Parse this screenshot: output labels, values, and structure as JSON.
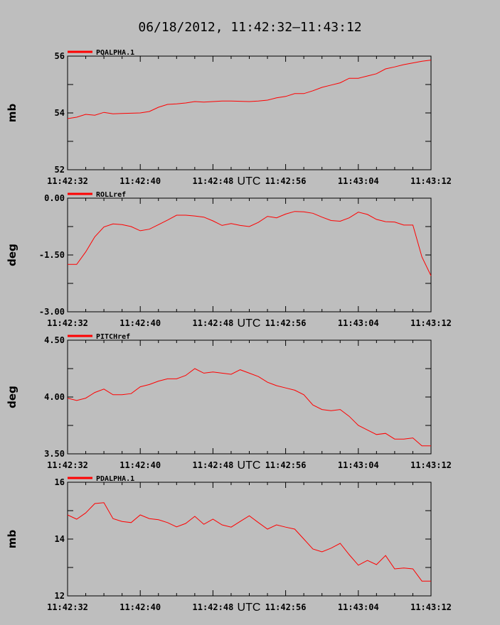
{
  "title": "06/18/2012, 11:42:32–11:43:12",
  "xlabel": "UTC",
  "x_ticks": [
    "11:42:32",
    "11:42:40",
    "11:42:48",
    "11:42:56",
    "11:43:04",
    "11:43:12"
  ],
  "series_color": "#ff0000",
  "chart_data": [
    {
      "type": "line",
      "legend": "PQALPHA.1",
      "ylabel": "mb",
      "ylim": [
        52,
        56
      ],
      "y_ticks": [
        "52",
        "54",
        "56"
      ],
      "x": [
        "11:42:32",
        "11:42:33",
        "11:42:34",
        "11:42:35",
        "11:42:36",
        "11:42:37",
        "11:42:38",
        "11:42:39",
        "11:42:40",
        "11:42:41",
        "11:42:42",
        "11:42:43",
        "11:42:44",
        "11:42:45",
        "11:42:46",
        "11:42:47",
        "11:42:48",
        "11:42:49",
        "11:42:50",
        "11:42:51",
        "11:42:52",
        "11:42:53",
        "11:42:54",
        "11:42:55",
        "11:42:56",
        "11:42:57",
        "11:42:58",
        "11:42:59",
        "11:43:00",
        "11:43:01",
        "11:43:02",
        "11:43:03",
        "11:43:04",
        "11:43:05",
        "11:43:06",
        "11:43:07",
        "11:43:08",
        "11:43:09",
        "11:43:10",
        "11:43:11",
        "11:43:12"
      ],
      "values": [
        53.8,
        53.85,
        53.95,
        53.92,
        54.02,
        53.97,
        53.98,
        53.99,
        54.0,
        54.05,
        54.2,
        54.3,
        54.32,
        54.35,
        54.4,
        54.38,
        54.4,
        54.42,
        54.42,
        54.41,
        54.4,
        54.42,
        54.45,
        54.53,
        54.58,
        54.68,
        54.68,
        54.78,
        54.9,
        54.98,
        55.06,
        55.22,
        55.22,
        55.3,
        55.38,
        55.55,
        55.62,
        55.7,
        55.76,
        55.82,
        55.86
      ]
    },
    {
      "type": "line",
      "legend": "ROLLref",
      "ylabel": "deg",
      "ylim": [
        -3.0,
        0.0
      ],
      "y_ticks": [
        "-3.00",
        "-1.50",
        "0.00"
      ],
      "x": [
        "11:42:32",
        "11:42:33",
        "11:42:34",
        "11:42:35",
        "11:42:36",
        "11:42:37",
        "11:42:38",
        "11:42:39",
        "11:42:40",
        "11:42:41",
        "11:42:42",
        "11:42:43",
        "11:42:44",
        "11:42:45",
        "11:42:46",
        "11:42:47",
        "11:42:48",
        "11:42:49",
        "11:42:50",
        "11:42:51",
        "11:42:52",
        "11:42:53",
        "11:42:54",
        "11:42:55",
        "11:42:56",
        "11:42:57",
        "11:42:58",
        "11:42:59",
        "11:43:00",
        "11:43:01",
        "11:43:02",
        "11:43:03",
        "11:43:04",
        "11:43:05",
        "11:43:06",
        "11:43:07",
        "11:43:08",
        "11:43:09",
        "11:43:10",
        "11:43:11",
        "11:43:12"
      ],
      "values": [
        -1.75,
        -1.75,
        -1.42,
        -1.02,
        -0.76,
        -0.68,
        -0.7,
        -0.75,
        -0.86,
        -0.82,
        -0.7,
        -0.58,
        -0.45,
        -0.45,
        -0.47,
        -0.5,
        -0.6,
        -0.72,
        -0.67,
        -0.72,
        -0.75,
        -0.64,
        -0.48,
        -0.52,
        -0.42,
        -0.35,
        -0.36,
        -0.4,
        -0.5,
        -0.59,
        -0.61,
        -0.52,
        -0.37,
        -0.43,
        -0.56,
        -0.62,
        -0.63,
        -0.71,
        -0.71,
        -1.55,
        -2.05
      ]
    },
    {
      "type": "line",
      "legend": "PITCHref",
      "ylabel": "deg",
      "ylim": [
        3.5,
        4.5
      ],
      "y_ticks": [
        "3.50",
        "4.00",
        "4.50"
      ],
      "x": [
        "11:42:32",
        "11:42:33",
        "11:42:34",
        "11:42:35",
        "11:42:36",
        "11:42:37",
        "11:42:38",
        "11:42:39",
        "11:42:40",
        "11:42:41",
        "11:42:42",
        "11:42:43",
        "11:42:44",
        "11:42:45",
        "11:42:46",
        "11:42:47",
        "11:42:48",
        "11:42:49",
        "11:42:50",
        "11:42:51",
        "11:42:52",
        "11:42:53",
        "11:42:54",
        "11:42:55",
        "11:42:56",
        "11:42:57",
        "11:42:58",
        "11:42:59",
        "11:43:00",
        "11:43:01",
        "11:43:02",
        "11:43:03",
        "11:43:04",
        "11:43:05",
        "11:43:06",
        "11:43:07",
        "11:43:08",
        "11:43:09",
        "11:43:10",
        "11:43:11",
        "11:43:12"
      ],
      "values": [
        3.99,
        3.97,
        3.99,
        4.04,
        4.07,
        4.02,
        4.02,
        4.03,
        4.09,
        4.11,
        4.14,
        4.16,
        4.16,
        4.19,
        4.25,
        4.21,
        4.22,
        4.21,
        4.2,
        4.24,
        4.21,
        4.18,
        4.13,
        4.1,
        4.08,
        4.06,
        4.02,
        3.93,
        3.89,
        3.88,
        3.89,
        3.83,
        3.75,
        3.71,
        3.67,
        3.68,
        3.63,
        3.63,
        3.64,
        3.57,
        3.57
      ]
    },
    {
      "type": "line",
      "legend": "PDALPHA.1",
      "ylabel": "mb",
      "ylim": [
        12,
        16
      ],
      "y_ticks": [
        "12",
        "14",
        "16"
      ],
      "x": [
        "11:42:32",
        "11:42:33",
        "11:42:34",
        "11:42:35",
        "11:42:36",
        "11:42:37",
        "11:42:38",
        "11:42:39",
        "11:42:40",
        "11:42:41",
        "11:42:42",
        "11:42:43",
        "11:42:44",
        "11:42:45",
        "11:42:46",
        "11:42:47",
        "11:42:48",
        "11:42:49",
        "11:42:50",
        "11:42:51",
        "11:42:52",
        "11:42:53",
        "11:42:54",
        "11:42:55",
        "11:42:56",
        "11:42:57",
        "11:42:58",
        "11:42:59",
        "11:43:00",
        "11:43:01",
        "11:43:02",
        "11:43:03",
        "11:43:04",
        "11:43:05",
        "11:43:06",
        "11:43:07",
        "11:43:08",
        "11:43:09",
        "11:43:10",
        "11:43:11",
        "11:43:12"
      ],
      "values": [
        14.85,
        14.7,
        14.92,
        15.25,
        15.28,
        14.72,
        14.62,
        14.58,
        14.85,
        14.72,
        14.68,
        14.58,
        14.43,
        14.55,
        14.8,
        14.52,
        14.7,
        14.5,
        14.42,
        14.62,
        14.82,
        14.58,
        14.35,
        14.5,
        14.42,
        14.35,
        14.0,
        13.65,
        13.55,
        13.68,
        13.85,
        13.45,
        13.08,
        13.25,
        13.1,
        13.42,
        12.95,
        12.98,
        12.95,
        12.52,
        12.52
      ]
    }
  ]
}
